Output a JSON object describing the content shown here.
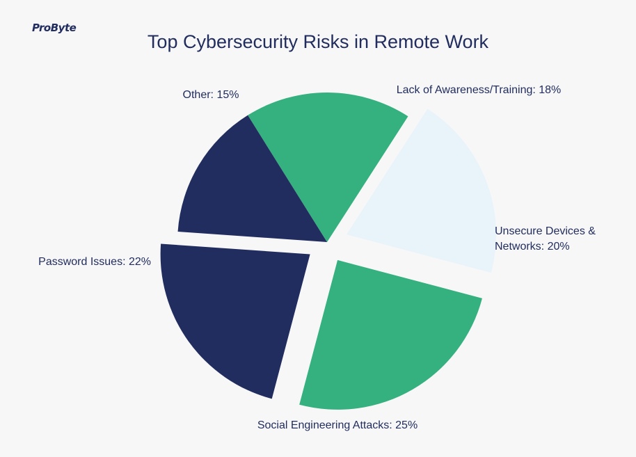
{
  "logo": {
    "text": "ProByte"
  },
  "chart_data": {
    "type": "pie",
    "title": "Top Cybersecurity Risks in Remote Work",
    "categories": [
      "Lack of Awareness/Training",
      "Unsecure Devices & Networks",
      "Social Engineering Attacks",
      "Password Issues",
      "Other"
    ],
    "values": [
      18,
      20,
      25,
      22,
      15
    ],
    "labels": [
      [
        "Lack of Awareness/Training: 18%"
      ],
      [
        "Unsecure Devices &",
        "Networks: 20%"
      ],
      [
        "Social Engineering Attacks: 25%"
      ],
      [
        "Password Issues: 22%"
      ],
      [
        "Other: 15%"
      ]
    ],
    "colors": [
      "#35b07f",
      "#e8f4fa",
      "#35b07f",
      "#212d5e",
      "#212d5e"
    ],
    "exploded": [
      false,
      true,
      true,
      true,
      false
    ]
  }
}
